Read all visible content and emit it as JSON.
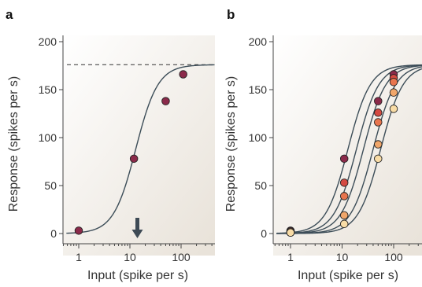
{
  "panels": [
    {
      "letter": "a",
      "xlabel": "Input (spike per s)",
      "ylabel": "Response (spikes per s)",
      "xscale": "log",
      "xlim": [
        0.5,
        500
      ],
      "ylim": [
        0,
        210
      ],
      "xticks": [
        {
          "value": 1,
          "label": "1"
        },
        {
          "value": 10,
          "label": "10"
        },
        {
          "value": 100,
          "label": "100"
        }
      ],
      "yticks": [
        {
          "value": 0,
          "label": "0"
        },
        {
          "value": 50,
          "label": "50"
        },
        {
          "value": 100,
          "label": "100"
        },
        {
          "value": 150,
          "label": "150"
        },
        {
          "value": 200,
          "label": "200"
        }
      ]
    },
    {
      "letter": "b",
      "xlabel": "Input (spike per s)",
      "ylabel": "Response (spikes per s)",
      "xscale": "log",
      "xlim": [
        0.5,
        500
      ],
      "ylim": [
        0,
        210
      ],
      "xticks": [
        {
          "value": 1,
          "label": "1"
        },
        {
          "value": 10,
          "label": "10"
        },
        {
          "value": 100,
          "label": "100"
        }
      ],
      "yticks": [
        {
          "value": 0,
          "label": "0"
        },
        {
          "value": 50,
          "label": "50"
        },
        {
          "value": 100,
          "label": "100"
        },
        {
          "value": 150,
          "label": "150"
        },
        {
          "value": 200,
          "label": "200"
        }
      ]
    }
  ],
  "chart_data": [
    {
      "type": "scatter",
      "panel": "a",
      "xscale": "log",
      "xlim": [
        0.5,
        500
      ],
      "ylim": [
        0,
        210
      ],
      "xlabel": "Input (spike per s)",
      "ylabel": "Response (spikes per s)",
      "series": [
        {
          "color": "#8b2a4a",
          "x": [
            1,
            12,
            50,
            110
          ],
          "y": [
            3,
            78,
            138,
            166
          ],
          "fit": {
            "max": 176,
            "half": 13,
            "n": 2.0
          }
        }
      ],
      "saturation_line": 176,
      "arrow_at_x": 14,
      "grid": false
    },
    {
      "type": "scatter",
      "panel": "b",
      "xscale": "log",
      "xlim": [
        0.5,
        500
      ],
      "ylim": [
        0,
        210
      ],
      "xlabel": "Input (spike per s)",
      "ylabel": "Response (spikes per s)",
      "series": [
        {
          "color": "#8b2a4a",
          "x": [
            1,
            11,
            50,
            100
          ],
          "y": [
            3,
            78,
            138,
            166
          ],
          "fit": {
            "max": 176,
            "half": 13,
            "n": 2.0
          }
        },
        {
          "color": "#d44a42",
          "x": [
            1,
            11,
            50,
            100
          ],
          "y": [
            2,
            53,
            126,
            162
          ],
          "fit": {
            "max": 176,
            "half": 19,
            "n": 2.0
          }
        },
        {
          "color": "#e8754e",
          "x": [
            1,
            11,
            50,
            100
          ],
          "y": [
            2,
            39,
            116,
            158
          ],
          "fit": {
            "max": 176,
            "half": 26,
            "n": 2.0
          }
        },
        {
          "color": "#f0a66a",
          "x": [
            1,
            11,
            50,
            100
          ],
          "y": [
            1,
            19,
            93,
            147
          ],
          "fit": {
            "max": 176,
            "half": 40,
            "n": 2.0
          }
        },
        {
          "color": "#f8dca6",
          "x": [
            1,
            11,
            50,
            100
          ],
          "y": [
            1,
            10,
            78,
            130
          ],
          "fit": {
            "max": 176,
            "half": 56,
            "n": 2.0
          }
        }
      ],
      "grid": false
    }
  ]
}
